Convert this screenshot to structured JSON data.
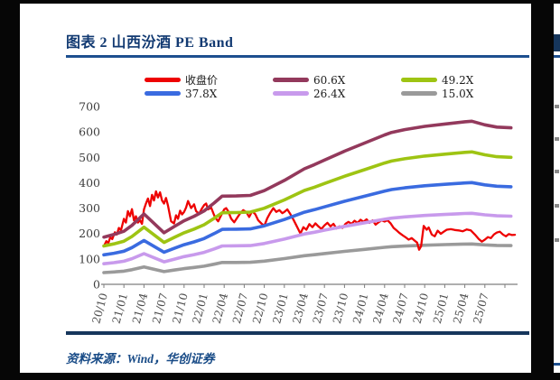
{
  "figure": {
    "title": "图表 2  山西汾酒 PE Band",
    "source_note": "资料来源：Wind，华创证券",
    "accent_color": "#16365c",
    "rule_color": "#1d4f8f"
  },
  "legend": {
    "columns": 3,
    "items": [
      {
        "label": "收盘价",
        "color": "#ee0202"
      },
      {
        "label": "60.6X",
        "color": "#93395c"
      },
      {
        "label": "49.2X",
        "color": "#9ec413"
      },
      {
        "label": "37.8X",
        "color": "#3a6be0"
      },
      {
        "label": "26.4X",
        "color": "#c89aec"
      },
      {
        "label": "15.0X",
        "color": "#9a9a9a"
      }
    ]
  },
  "chart_data": {
    "type": "line",
    "title": "山西汾酒 PE Band",
    "xlabel": "",
    "ylabel": "",
    "ylim": [
      0,
      700
    ],
    "yticks": [
      0,
      100,
      200,
      300,
      400,
      500,
      600,
      700
    ],
    "grid": false,
    "legend_position": "top",
    "x_unit": "quarter index, 0 = 2020/10, step = 3 months",
    "x_labels": [
      "20/10",
      "21/01",
      "21/04",
      "21/07",
      "21/10",
      "22/01",
      "22/04",
      "22/07",
      "22/10",
      "23/01",
      "23/04",
      "23/07",
      "23/10",
      "24/01",
      "24/04",
      "24/07",
      "24/10",
      "25/01",
      "25/04",
      "25/07"
    ],
    "x_tick_count": 21,
    "close_series": {
      "name": "收盘价",
      "color": "#ee0202",
      "points": [
        [
          0,
          150
        ],
        [
          0.12,
          170
        ],
        [
          0.22,
          162
        ],
        [
          0.32,
          185
        ],
        [
          0.42,
          178
        ],
        [
          0.55,
          205
        ],
        [
          0.65,
          196
        ],
        [
          0.75,
          222
        ],
        [
          0.85,
          212
        ],
        [
          1,
          258
        ],
        [
          1.1,
          243
        ],
        [
          1.2,
          288
        ],
        [
          1.3,
          268
        ],
        [
          1.4,
          296
        ],
        [
          1.5,
          252
        ],
        [
          1.6,
          268
        ],
        [
          1.7,
          243
        ],
        [
          1.8,
          252
        ],
        [
          1.9,
          238
        ],
        [
          2,
          295
        ],
        [
          2.1,
          318
        ],
        [
          2.2,
          338
        ],
        [
          2.3,
          308
        ],
        [
          2.4,
          352
        ],
        [
          2.5,
          330
        ],
        [
          2.6,
          366
        ],
        [
          2.7,
          342
        ],
        [
          2.8,
          362
        ],
        [
          2.9,
          330
        ],
        [
          3,
          318
        ],
        [
          3.1,
          340
        ],
        [
          3.2,
          310
        ],
        [
          3.35,
          248
        ],
        [
          3.5,
          240
        ],
        [
          3.6,
          272
        ],
        [
          3.7,
          258
        ],
        [
          3.8,
          290
        ],
        [
          3.9,
          275
        ],
        [
          4,
          285
        ],
        [
          4.1,
          302
        ],
        [
          4.2,
          328
        ],
        [
          4.35,
          300
        ],
        [
          4.5,
          315
        ],
        [
          4.6,
          288
        ],
        [
          4.75,
          278
        ],
        [
          4.9,
          300
        ],
        [
          5,
          312
        ],
        [
          5.1,
          318
        ],
        [
          5.2,
          295
        ],
        [
          5.35,
          302
        ],
        [
          5.5,
          272
        ],
        [
          5.6,
          258
        ],
        [
          5.7,
          248
        ],
        [
          5.85,
          272
        ],
        [
          6,
          295
        ],
        [
          6.1,
          300
        ],
        [
          6.2,
          288
        ],
        [
          6.35,
          258
        ],
        [
          6.5,
          244
        ],
        [
          6.65,
          262
        ],
        [
          6.8,
          280
        ],
        [
          6.95,
          292
        ],
        [
          7.1,
          285
        ],
        [
          7.25,
          265
        ],
        [
          7.4,
          288
        ],
        [
          7.55,
          276
        ],
        [
          7.7,
          252
        ],
        [
          7.85,
          240
        ],
        [
          8,
          230
        ],
        [
          8.15,
          260
        ],
        [
          8.3,
          282
        ],
        [
          8.45,
          300
        ],
        [
          8.6,
          285
        ],
        [
          8.75,
          292
        ],
        [
          8.9,
          280
        ],
        [
          9,
          285
        ],
        [
          9.15,
          295
        ],
        [
          9.3,
          276
        ],
        [
          9.45,
          255
        ],
        [
          9.6,
          232
        ],
        [
          9.8,
          200
        ],
        [
          9.95,
          225
        ],
        [
          10.1,
          215
        ],
        [
          10.25,
          237
        ],
        [
          10.4,
          225
        ],
        [
          10.55,
          240
        ],
        [
          10.7,
          228
        ],
        [
          10.85,
          218
        ],
        [
          11,
          232
        ],
        [
          11.15,
          242
        ],
        [
          11.3,
          228
        ],
        [
          11.45,
          238
        ],
        [
          11.6,
          220
        ],
        [
          11.75,
          228
        ],
        [
          11.9,
          222
        ],
        [
          12.05,
          238
        ],
        [
          12.2,
          246
        ],
        [
          12.35,
          238
        ],
        [
          12.5,
          250
        ],
        [
          12.65,
          242
        ],
        [
          12.8,
          254
        ],
        [
          12.95,
          246
        ],
        [
          13.1,
          256
        ],
        [
          13.25,
          242
        ],
        [
          13.4,
          252
        ],
        [
          13.55,
          235
        ],
        [
          13.7,
          244
        ],
        [
          13.85,
          252
        ],
        [
          14,
          247
        ],
        [
          14.15,
          252
        ],
        [
          14.3,
          240
        ],
        [
          14.45,
          222
        ],
        [
          14.6,
          212
        ],
        [
          14.75,
          202
        ],
        [
          14.9,
          193
        ],
        [
          15.05,
          185
        ],
        [
          15.2,
          176
        ],
        [
          15.35,
          182
        ],
        [
          15.5,
          172
        ],
        [
          15.62,
          164
        ],
        [
          15.72,
          136
        ],
        [
          15.82,
          150
        ],
        [
          15.95,
          230
        ],
        [
          16.1,
          215
        ],
        [
          16.2,
          224
        ],
        [
          16.35,
          196
        ],
        [
          16.5,
          189
        ],
        [
          16.65,
          211
        ],
        [
          16.8,
          199
        ],
        [
          16.95,
          207
        ],
        [
          17.1,
          215
        ],
        [
          17.3,
          217
        ],
        [
          17.5,
          214
        ],
        [
          17.7,
          212
        ],
        [
          17.9,
          209
        ],
        [
          18.1,
          216
        ],
        [
          18.3,
          212
        ],
        [
          18.5,
          196
        ],
        [
          18.7,
          178
        ],
        [
          18.85,
          168
        ],
        [
          19,
          176
        ],
        [
          19.15,
          186
        ],
        [
          19.3,
          182
        ],
        [
          19.45,
          196
        ],
        [
          19.6,
          204
        ],
        [
          19.75,
          207
        ],
        [
          19.9,
          196
        ],
        [
          20.05,
          189
        ],
        [
          20.2,
          198
        ],
        [
          20.35,
          194
        ],
        [
          20.5,
          195
        ]
      ]
    },
    "pe_band_base_60_6x": {
      "name": "60.6X",
      "multiple": 60.6,
      "points": [
        [
          0,
          186
        ],
        [
          0.5,
          196
        ],
        [
          1,
          209
        ],
        [
          1.4,
          232
        ],
        [
          2,
          277
        ],
        [
          3,
          203
        ],
        [
          3.5,
          227
        ],
        [
          4,
          250
        ],
        [
          4.5,
          268
        ],
        [
          5,
          289
        ],
        [
          5.5,
          320
        ],
        [
          5.9,
          347
        ],
        [
          6.6,
          348
        ],
        [
          7.3,
          350
        ],
        [
          8,
          369
        ],
        [
          9,
          409
        ],
        [
          10,
          455
        ],
        [
          10.5,
          471
        ],
        [
          11,
          489
        ],
        [
          12,
          524
        ],
        [
          13,
          556
        ],
        [
          14,
          588
        ],
        [
          14.35,
          598
        ],
        [
          15,
          609
        ],
        [
          16,
          622
        ],
        [
          17,
          631
        ],
        [
          18,
          640
        ],
        [
          18.35,
          642
        ],
        [
          19,
          628
        ],
        [
          19.6,
          619
        ],
        [
          20.3,
          616
        ]
      ]
    },
    "bands": [
      {
        "name": "60.6X",
        "multiple": 60.6,
        "color": "#93395c"
      },
      {
        "name": "49.2X",
        "multiple": 49.2,
        "color": "#9ec413"
      },
      {
        "name": "37.8X",
        "multiple": 37.8,
        "color": "#3a6be0"
      },
      {
        "name": "26.4X",
        "multiple": 26.4,
        "color": "#c89aec"
      },
      {
        "name": "15.0X",
        "multiple": 15.0,
        "color": "#9a9a9a"
      }
    ]
  }
}
